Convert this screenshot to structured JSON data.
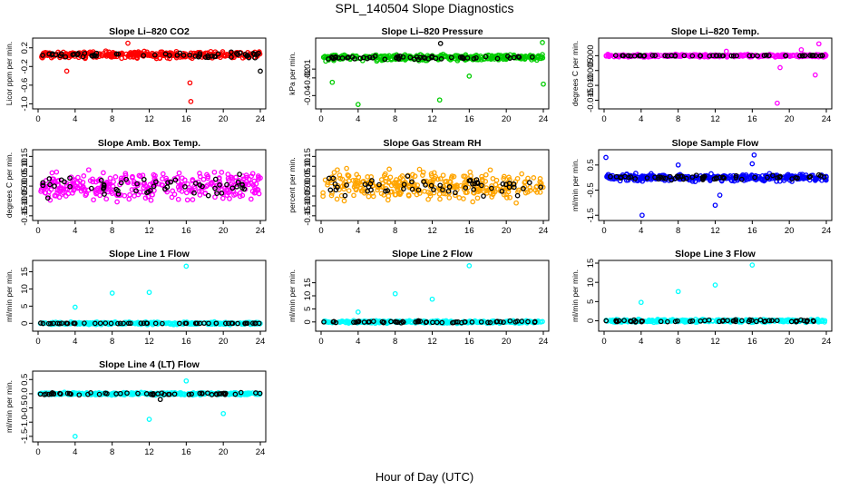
{
  "page": {
    "title": "SPL_140504  Slope Diagnostics",
    "xlabel": "Hour of Day (UTC)"
  },
  "chart_data": [
    {
      "type": "scatter",
      "title": "Slope Li–820 CO2",
      "ylabel": "Licor ppm per min.",
      "xlim": [
        0,
        24
      ],
      "ylim": [
        -1.05,
        0.35
      ],
      "yticks": [
        -1.0,
        -0.6,
        -0.2,
        0.2
      ],
      "ytick_labels": [
        "-1.0",
        "-0.6",
        "-0.2",
        "0.2"
      ],
      "xticks": [
        0,
        4,
        8,
        12,
        16,
        20,
        24
      ],
      "series": [
        {
          "role": "all",
          "color": "#ff0000",
          "spread": 0.1,
          "center": 0.05,
          "outliers": [
            [
              16.5,
              -0.95
            ],
            [
              16.4,
              -0.55
            ],
            [
              3.1,
              -0.3
            ],
            [
              9.7,
              0.3
            ]
          ]
        },
        {
          "role": "subset",
          "color": "#000000",
          "spread": 0.08,
          "center": 0.05,
          "outliers": [
            [
              24.0,
              -0.3
            ]
          ]
        }
      ]
    },
    {
      "type": "scatter",
      "title": "Slope Li–820 Pressure",
      "ylabel": "kPa per min.",
      "xlim": [
        0,
        24
      ],
      "ylim": [
        -0.052,
        0.022
      ],
      "yticks": [
        -0.04,
        -0.02,
        -0.01
      ],
      "ytick_labels": [
        "-0.04",
        "-0.02",
        "-0.01"
      ],
      "xticks": [
        0,
        4,
        8,
        12,
        16,
        20,
        24
      ],
      "series": [
        {
          "role": "all",
          "color": "#00cc00",
          "spread": 0.005,
          "center": 0.003,
          "outliers": [
            [
              4.0,
              -0.05
            ],
            [
              12.8,
              -0.045
            ],
            [
              1.2,
              -0.025
            ],
            [
              24.0,
              -0.027
            ],
            [
              16.0,
              -0.018
            ],
            [
              23.9,
              0.02
            ]
          ]
        },
        {
          "role": "subset",
          "color": "#000000",
          "spread": 0.003,
          "center": 0.003,
          "outliers": [
            [
              12.9,
              0.019
            ]
          ]
        }
      ]
    },
    {
      "type": "scatter",
      "title": "Slope Li–820 Temp.",
      "ylabel": "degrees C per min.",
      "xlim": [
        0,
        24
      ],
      "ylim": [
        -0.017,
        0.005
      ],
      "yticks": [
        -0.015,
        -0.01,
        -0.005,
        0.0
      ],
      "ytick_labels": [
        "-0.015",
        "-0.010",
        "-0.005",
        "0.000"
      ],
      "xticks": [
        0,
        4,
        8,
        12,
        16,
        20,
        24
      ],
      "series": [
        {
          "role": "all",
          "color": "#ff00ff",
          "spread": 0.0006,
          "center": 0.0,
          "outliers": [
            [
              18.7,
              -0.016
            ],
            [
              22.8,
              -0.0065
            ],
            [
              23.2,
              0.004
            ],
            [
              19.0,
              -0.004
            ],
            [
              21.3,
              0.002
            ],
            [
              13.2,
              0.0015
            ]
          ]
        },
        {
          "role": "subset",
          "color": "#000000",
          "spread": 0.0002,
          "center": 0.0,
          "outliers": []
        }
      ]
    },
    {
      "type": "scatter",
      "title": "Slope Amb. Box Temp.",
      "ylabel": "degrees C per min.",
      "xlim": [
        0,
        24
      ],
      "ylim": [
        -0.16,
        0.17
      ],
      "yticks": [
        -0.15,
        -0.1,
        -0.05,
        0.0,
        0.05,
        0.1,
        0.15
      ],
      "ytick_labels": [
        "-0.15",
        "-0.10",
        "-0.05",
        "0.00",
        "0.05",
        "0.10",
        "0.15"
      ],
      "xticks": [
        0,
        4,
        8,
        12,
        16,
        20,
        24
      ],
      "series": [
        {
          "role": "all",
          "color": "#ff00ff",
          "spread": 0.1,
          "center": 0.0,
          "outliers": []
        },
        {
          "role": "subset",
          "color": "#000000",
          "spread": 0.08,
          "center": 0.0,
          "outliers": []
        }
      ]
    },
    {
      "type": "scatter",
      "title": "Slope Gas Stream RH",
      "ylabel": "percent per min.",
      "xlim": [
        0,
        24
      ],
      "ylim": [
        -0.16,
        0.17
      ],
      "yticks": [
        -0.15,
        -0.1,
        -0.05,
        0.0,
        0.05,
        0.1,
        0.15
      ],
      "ytick_labels": [
        "-0.15",
        "-0.10",
        "-0.05",
        "0.00",
        "0.05",
        "0.10",
        "0.15"
      ],
      "xticks": [
        0,
        4,
        8,
        12,
        16,
        20,
        24
      ],
      "series": [
        {
          "role": "all",
          "color": "#ffa500",
          "spread": 0.1,
          "center": 0.0,
          "outliers": []
        },
        {
          "role": "subset",
          "color": "#000000",
          "spread": 0.08,
          "center": 0.0,
          "outliers": []
        }
      ]
    },
    {
      "type": "scatter",
      "title": "Slope Sample Flow",
      "ylabel": "ml/min per min.",
      "xlim": [
        0,
        24
      ],
      "ylim": [
        -1.6,
        1.0
      ],
      "yticks": [
        -1.5,
        -0.5,
        0.5
      ],
      "ytick_labels": [
        "-1.5",
        "-0.5",
        "0.5"
      ],
      "xticks": [
        0,
        4,
        8,
        12,
        16,
        20,
        24
      ],
      "series": [
        {
          "role": "all",
          "color": "#0000ff",
          "spread": 0.2,
          "center": 0.0,
          "outliers": [
            [
              4.1,
              -1.5
            ],
            [
              12.0,
              -1.1
            ],
            [
              16.2,
              0.9
            ],
            [
              0.2,
              0.8
            ],
            [
              16.0,
              0.55
            ],
            [
              8.0,
              0.5
            ],
            [
              12.5,
              -0.7
            ]
          ]
        },
        {
          "role": "subset",
          "color": "#000000",
          "spread": 0.15,
          "center": 0.0,
          "outliers": []
        }
      ]
    },
    {
      "type": "scatter",
      "title": "Slope Line 1 Flow",
      "ylabel": "ml/min per min.",
      "xlim": [
        0,
        24
      ],
      "ylim": [
        -1.5,
        17.5
      ],
      "yticks": [
        0,
        5,
        10,
        15
      ],
      "ytick_labels": [
        "0",
        "5",
        "10",
        "15"
      ],
      "xticks": [
        0,
        4,
        8,
        12,
        16,
        20,
        24
      ],
      "series": [
        {
          "role": "all",
          "color": "#00ffff",
          "spread": 0.5,
          "center": 0.0,
          "outliers": [
            [
              16.0,
              16.6
            ],
            [
              8.0,
              8.8
            ],
            [
              12.0,
              9.0
            ],
            [
              4.0,
              4.7
            ]
          ]
        },
        {
          "role": "subset",
          "color": "#000000",
          "spread": 0.1,
          "center": 0.0,
          "outliers": []
        }
      ]
    },
    {
      "type": "scatter",
      "title": "Slope Line 2 Flow",
      "ylabel": "ml/min per min.",
      "xlim": [
        0,
        24
      ],
      "ylim": [
        -2.5,
        22.5
      ],
      "yticks": [
        0,
        5,
        10,
        15
      ],
      "ytick_labels": [
        "0",
        "5",
        "10",
        "15"
      ],
      "xticks": [
        0,
        4,
        8,
        12,
        16,
        20,
        24
      ],
      "series": [
        {
          "role": "all",
          "color": "#00ffff",
          "spread": 0.7,
          "center": 0.0,
          "outliers": [
            [
              16.0,
              21.5
            ],
            [
              8.0,
              10.8
            ],
            [
              12.0,
              8.7
            ],
            [
              4.0,
              3.8
            ]
          ]
        },
        {
          "role": "subset",
          "color": "#000000",
          "spread": 0.5,
          "center": 0.0,
          "outliers": []
        }
      ]
    },
    {
      "type": "scatter",
      "title": "Slope Line 3 Flow",
      "ylabel": "ml/min per min.",
      "xlim": [
        0,
        24
      ],
      "ylim": [
        -2.0,
        15.0
      ],
      "yticks": [
        0,
        5,
        10,
        15
      ],
      "ytick_labels": [
        "0",
        "5",
        "10",
        "15"
      ],
      "xticks": [
        0,
        4,
        8,
        12,
        16,
        20,
        24
      ],
      "series": [
        {
          "role": "all",
          "color": "#00ffff",
          "spread": 0.5,
          "center": 0.0,
          "outliers": [
            [
              16.0,
              14.5
            ],
            [
              12.0,
              9.3
            ],
            [
              8.0,
              7.6
            ],
            [
              4.0,
              4.8
            ]
          ]
        },
        {
          "role": "subset",
          "color": "#000000",
          "spread": 0.4,
          "center": 0.0,
          "outliers": []
        }
      ]
    },
    {
      "type": "scatter",
      "title": "Slope Line 4 (LT) Flow",
      "ylabel": "ml/min per min.",
      "xlim": [
        0,
        24
      ],
      "ylim": [
        -1.6,
        0.7
      ],
      "yticks": [
        -1.5,
        -1.0,
        -0.5,
        0.0,
        0.5
      ],
      "ytick_labels": [
        "-1.5",
        "-1.0",
        "-0.5",
        "0.0",
        "0.5"
      ],
      "xticks": [
        0,
        4,
        8,
        12,
        16,
        20,
        24
      ],
      "series": [
        {
          "role": "all",
          "color": "#00ffff",
          "spread": 0.06,
          "center": 0.0,
          "outliers": [
            [
              4.0,
              -1.5
            ],
            [
              12.0,
              -0.9
            ],
            [
              20.0,
              -0.7
            ],
            [
              16.0,
              0.45
            ]
          ]
        },
        {
          "role": "subset",
          "color": "#000000",
          "spread": 0.06,
          "center": 0.0,
          "outliers": [
            [
              13.2,
              -0.2
            ]
          ]
        }
      ]
    }
  ]
}
